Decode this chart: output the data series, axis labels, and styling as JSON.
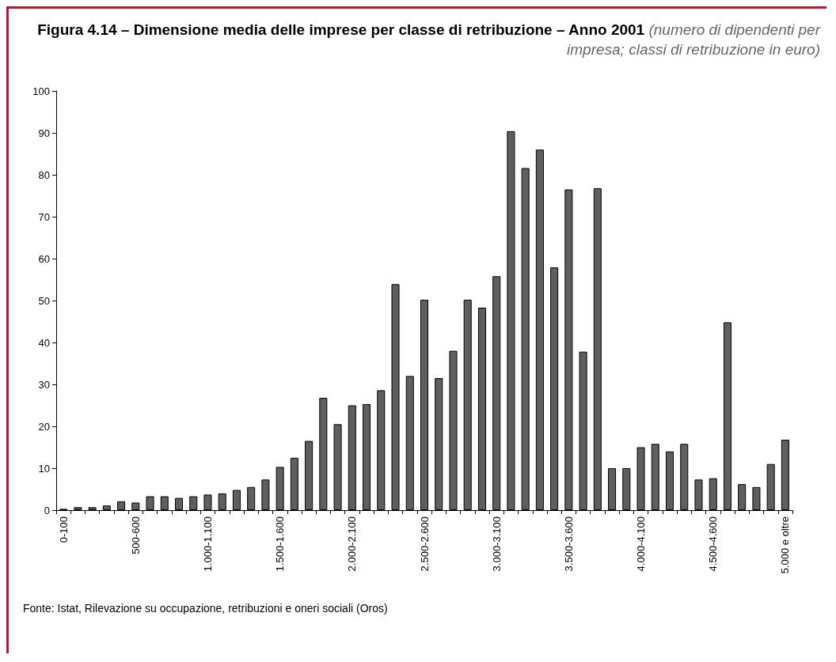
{
  "chart_data": {
    "type": "bar",
    "title": "Figura 4.14 – Dimensione media delle imprese per classe di retribuzione – Anno 2001",
    "subtitle": "(numero di dipendenti per impresa; classi di retribuzione in euro)",
    "annotations": [
      "Fonte: Istat, Rilevazione su occupazione, retribuzioni e oneri sociali (Oros)"
    ],
    "categories": [
      "0-100",
      null,
      null,
      null,
      null,
      "500-600",
      null,
      null,
      null,
      null,
      "1.000-1.100",
      null,
      null,
      null,
      null,
      "1.500-1.600",
      null,
      null,
      null,
      null,
      "2.000-2.100",
      null,
      null,
      null,
      null,
      "2.500-2.600",
      null,
      null,
      null,
      null,
      "3.000-3.100",
      null,
      null,
      null,
      null,
      "3.500-3.600",
      null,
      null,
      null,
      null,
      "4.000-4.100",
      null,
      null,
      null,
      null,
      "4.500-4.600",
      null,
      null,
      null,
      null,
      "5.000 e oltre"
    ],
    "values": [
      0.3,
      0.7,
      0.7,
      1.1,
      2.1,
      1.8,
      3.3,
      3.3,
      2.9,
      3.3,
      3.7,
      4.0,
      4.8,
      5.5,
      7.3,
      10.3,
      12.5,
      16.5,
      26.8,
      20.5,
      25,
      25.3,
      28.6,
      53.9,
      32,
      50.2,
      31.5,
      38,
      50.2,
      48.3,
      55.8,
      90.4,
      81.6,
      86,
      57.9,
      76.5,
      37.8,
      76.8,
      10,
      10,
      15,
      15.8,
      14,
      15.8,
      7.3,
      7.6,
      44.8,
      6.2,
      5.5,
      11,
      16.8
    ],
    "color": "#5f5f5f",
    "ylim": [
      0,
      100
    ],
    "yticks": [
      0,
      10,
      20,
      30,
      40,
      50,
      60,
      70,
      80,
      90,
      100
    ],
    "grid": false
  }
}
